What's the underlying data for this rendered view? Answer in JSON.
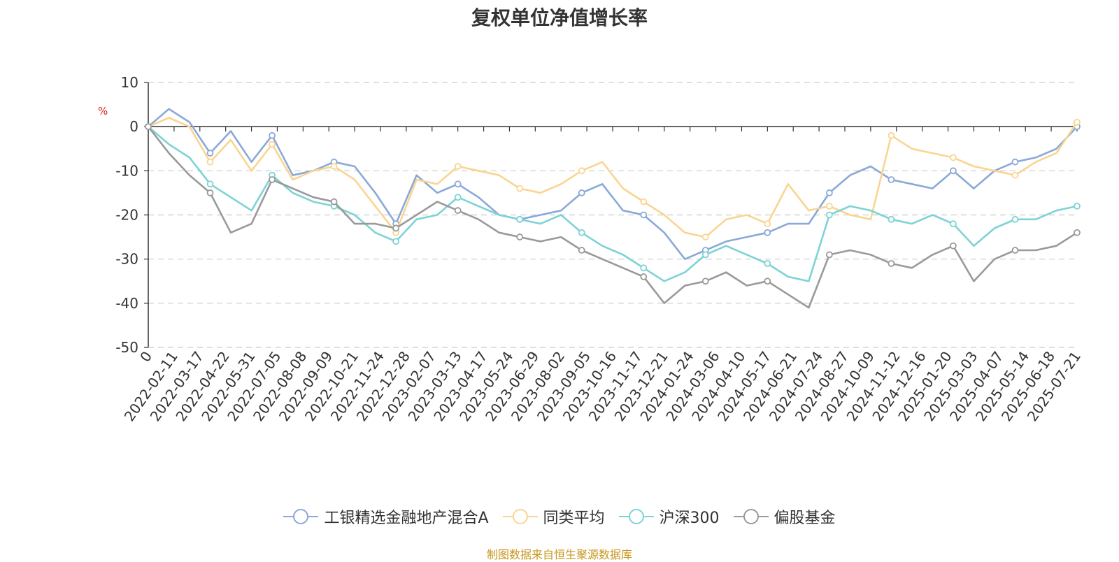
{
  "chart_data": {
    "type": "line",
    "title": "复权单位净值增长率",
    "ylabel": "%",
    "ylim": [
      -50,
      10
    ],
    "yticks": [
      "10",
      "0",
      "-10",
      "-20",
      "-30",
      "-40",
      "-50"
    ],
    "xticks": [
      "0",
      "2022-02-11",
      "2022-03-17",
      "2022-04-22",
      "2022-05-31",
      "2022-07-05",
      "2022-08-08",
      "2022-09-09",
      "2022-10-21",
      "2022-11-24",
      "2022-12-28",
      "2023-02-07",
      "2023-03-13",
      "2023-04-17",
      "2023-05-24",
      "2023-06-29",
      "2023-08-02",
      "2023-09-05",
      "2023-10-16",
      "2023-11-17",
      "2023-12-21",
      "2024-01-24",
      "2024-03-06",
      "2024-04-10",
      "2024-05-17",
      "2024-06-21",
      "2024-07-24",
      "2024-08-27",
      "2024-10-09",
      "2024-11-12",
      "2024-12-16",
      "2025-01-20",
      "2025-03-03",
      "2025-04-07",
      "2025-05-14",
      "2025-06-18",
      "2025-07-21"
    ],
    "grid": true,
    "legend_position": "bottom",
    "series": [
      {
        "name": "工银精选金融地产混合A",
        "color": "#8aa9d8",
        "values": [
          0,
          4,
          1,
          -6,
          -1,
          -8,
          -2,
          -11,
          -10,
          -8,
          -9,
          -15,
          -22,
          -11,
          -15,
          -13,
          -16,
          -20,
          -21,
          -20,
          -19,
          -15,
          -13,
          -19,
          -20,
          -24,
          -30,
          -28,
          -26,
          -25,
          -24,
          -22,
          -22,
          -15,
          -11,
          -9,
          -12,
          -13,
          -14,
          -10,
          -14,
          -10,
          -8,
          -7,
          -5,
          0
        ]
      },
      {
        "name": "同类平均",
        "color": "#f9d591",
        "values": [
          0,
          2,
          0,
          -8,
          -3,
          -10,
          -4,
          -12,
          -10,
          -9,
          -12,
          -18,
          -24,
          -12,
          -13,
          -9,
          -10,
          -11,
          -14,
          -15,
          -13,
          -10,
          -8,
          -14,
          -17,
          -20,
          -24,
          -25,
          -21,
          -20,
          -22,
          -13,
          -19,
          -18,
          -20,
          -21,
          -2,
          -5,
          -6,
          -7,
          -9,
          -10,
          -11,
          -8,
          -6,
          1
        ]
      },
      {
        "name": "沪深300",
        "color": "#7dd3d6",
        "values": [
          0,
          -4,
          -7,
          -13,
          -16,
          -19,
          -11,
          -15,
          -17,
          -18,
          -20,
          -24,
          -26,
          -21,
          -20,
          -16,
          -18,
          -20,
          -21,
          -22,
          -20,
          -24,
          -27,
          -29,
          -32,
          -35,
          -33,
          -29,
          -27,
          -29,
          -31,
          -34,
          -35,
          -20,
          -18,
          -19,
          -21,
          -22,
          -20,
          -22,
          -27,
          -23,
          -21,
          -21,
          -19,
          -18
        ]
      },
      {
        "name": "偏股基金",
        "color": "#9a9a9a",
        "values": [
          0,
          -6,
          -11,
          -15,
          -24,
          -22,
          -12,
          -14,
          -16,
          -17,
          -22,
          -22,
          -23,
          -20,
          -17,
          -19,
          -21,
          -24,
          -25,
          -26,
          -25,
          -28,
          -30,
          -32,
          -34,
          -40,
          -36,
          -35,
          -33,
          -36,
          -35,
          -38,
          -41,
          -29,
          -28,
          -29,
          -31,
          -32,
          -29,
          -27,
          -35,
          -30,
          -28,
          -28,
          -27,
          -24
        ]
      }
    ]
  },
  "legend": {
    "items": [
      "工银精选金融地产混合A",
      "同类平均",
      "沪深300",
      "偏股基金"
    ]
  },
  "source": "制图数据来自恒生聚源数据库"
}
